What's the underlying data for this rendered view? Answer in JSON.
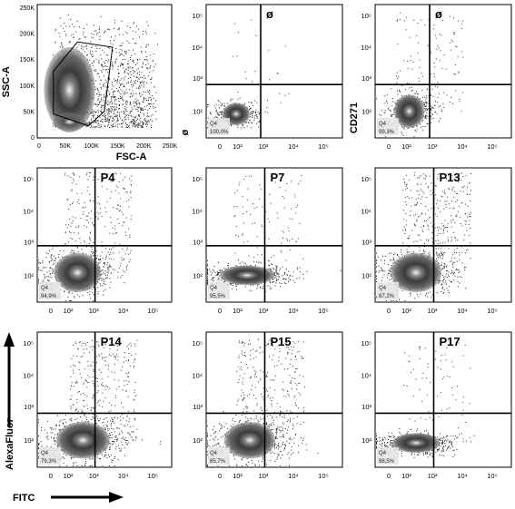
{
  "figure": {
    "panel_labels": [
      "",
      "ø",
      "ø",
      "P4",
      "P7",
      "P13",
      "P14",
      "P15",
      "P17"
    ],
    "gate_name": "Q4",
    "gate_values": [
      "",
      "100,0%",
      "99,3%",
      "94,9%",
      "95,5%",
      "87,2%",
      "79,3%",
      "85,7%",
      "98,5%"
    ],
    "scatter_axes": {
      "x_label": "FSC-A",
      "y_label": "SSC-A",
      "x_ticks": [
        "0",
        "50K",
        "100K",
        "150K",
        "200K",
        "250K"
      ],
      "y_ticks": [
        "0",
        "50K",
        "100K",
        "150K",
        "200K",
        "250K"
      ]
    },
    "row1_axis_labels": {
      "panel2_y": "ø",
      "panel3_y": "CD271"
    },
    "log_x_ticks": [
      "0",
      "10²",
      "10³",
      "10⁴",
      "10⁵"
    ],
    "log_y_ticks": [
      "10²",
      "10³",
      "10⁴",
      "10⁵"
    ],
    "bottom_x_label": "FITC",
    "left_y_label": "AlexaFluor"
  }
}
